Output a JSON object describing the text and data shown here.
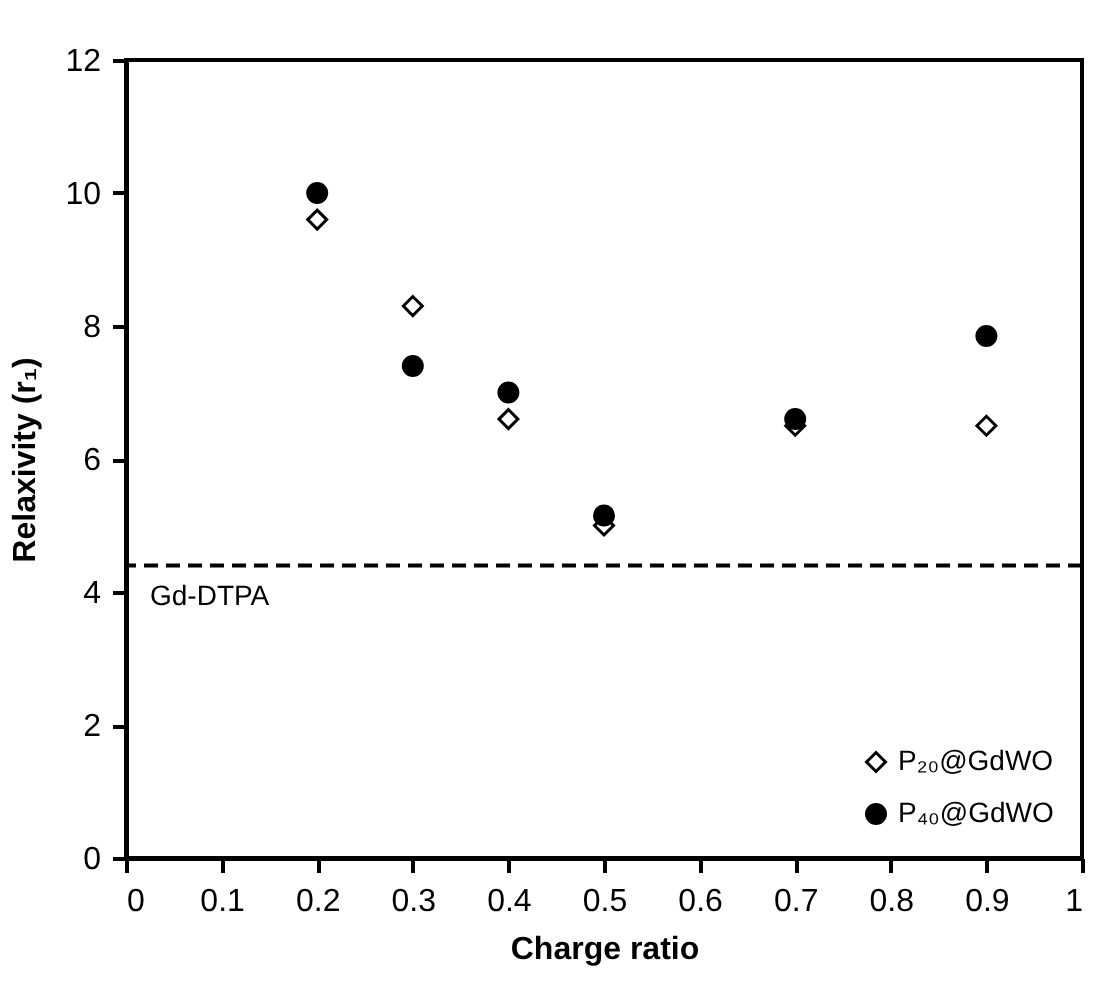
{
  "chart_data": {
    "type": "scatter",
    "xlabel": "Charge ratio",
    "ylabel": "Relaxivity (r₁)",
    "x": [
      0.2,
      0.3,
      0.4,
      0.5,
      0.7,
      0.9
    ],
    "series": [
      {
        "name": "P₂₀@GdWO",
        "color": "#000000",
        "marker": "diamond",
        "values": [
          9.6,
          8.3,
          6.6,
          5.0,
          6.5,
          6.5
        ]
      },
      {
        "name": "P₄₀@GdWO",
        "color": "#000000",
        "marker": "circle",
        "values": [
          10.0,
          7.4,
          7.0,
          5.15,
          6.6,
          7.85
        ]
      }
    ],
    "xlim": [
      0,
      1
    ],
    "xticks": [
      0,
      0.1,
      0.2,
      0.3,
      0.4,
      0.5,
      0.6,
      0.7,
      0.8,
      0.9,
      1
    ],
    "ylim": [
      0,
      12
    ],
    "yticks": [
      0,
      2,
      4,
      6,
      8,
      10,
      12
    ],
    "ref_lines": [
      {
        "axis": "y",
        "value": 4.4,
        "label": "Gd-DTPA",
        "line_style": "dashed",
        "color": "#000000"
      }
    ],
    "grid": false,
    "legend": "bottom right"
  }
}
